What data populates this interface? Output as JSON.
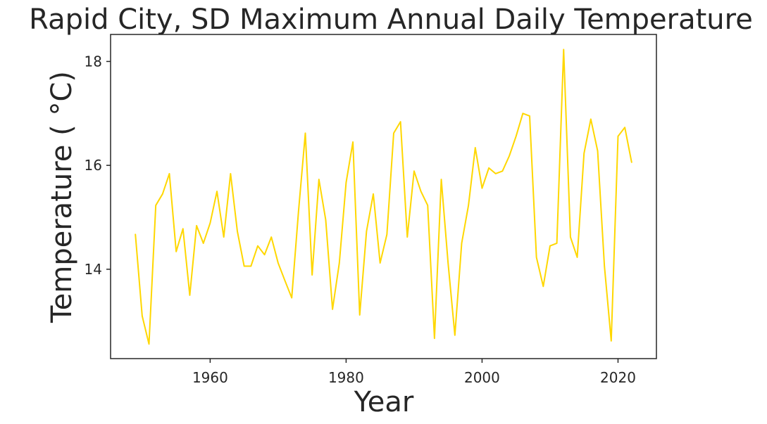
{
  "chart_data": {
    "type": "line",
    "title": "Rapid City, SD Maximum Annual Daily Temperature",
    "xlabel": "Year",
    "ylabel": "Temperature ($^\\circ$C)",
    "ylabel_display": "Temperature ( °C)",
    "xlim": [
      1945.35,
      2025.65
    ],
    "ylim": [
      12.28,
      18.52
    ],
    "xticks": [
      1960,
      1980,
      2000,
      2020
    ],
    "yticks": [
      14,
      16,
      18
    ],
    "grid": false,
    "legend": "none",
    "line_color": "#ffd700",
    "series": [
      {
        "x": [
          1949,
          1950,
          1951,
          1952,
          1953,
          1954,
          1955,
          1956,
          1957,
          1958,
          1959,
          1960,
          1961,
          1962,
          1963,
          1964,
          1965,
          1966,
          1967,
          1968,
          1969,
          1970,
          1971,
          1972,
          1973,
          1974,
          1975,
          1976,
          1977,
          1978,
          1979,
          1980,
          1981,
          1982,
          1983,
          1984,
          1985,
          1986,
          1987,
          1988,
          1989,
          1990,
          1991,
          1992,
          1993,
          1994,
          1995,
          1996,
          1997,
          1998,
          1999,
          2000,
          2001,
          2002,
          2003,
          2004,
          2005,
          2006,
          2007,
          2008,
          2009,
          2010,
          2011,
          2012,
          2013,
          2014,
          2015,
          2016,
          2017,
          2018,
          2019,
          2020,
          2021,
          2022
        ],
        "values": [
          14.67,
          13.1,
          12.56,
          15.23,
          15.45,
          15.84,
          14.34,
          14.78,
          13.5,
          14.84,
          14.5,
          14.89,
          15.5,
          14.62,
          15.84,
          14.73,
          14.06,
          14.06,
          14.45,
          14.28,
          14.62,
          14.12,
          13.78,
          13.45,
          15.12,
          16.62,
          13.89,
          15.73,
          14.95,
          13.23,
          14.12,
          15.67,
          16.45,
          13.12,
          14.73,
          15.45,
          14.12,
          14.67,
          16.62,
          16.84,
          14.62,
          15.89,
          15.5,
          15.23,
          12.67,
          15.73,
          14.12,
          12.73,
          14.5,
          15.23,
          16.34,
          15.56,
          15.95,
          15.84,
          15.89,
          16.18,
          16.56,
          17.0,
          16.95,
          14.23,
          13.67,
          14.45,
          14.5,
          18.23,
          14.62,
          14.23,
          16.23,
          16.89,
          16.28,
          14.06,
          12.62,
          16.56,
          16.73,
          16.06
        ]
      }
    ]
  }
}
